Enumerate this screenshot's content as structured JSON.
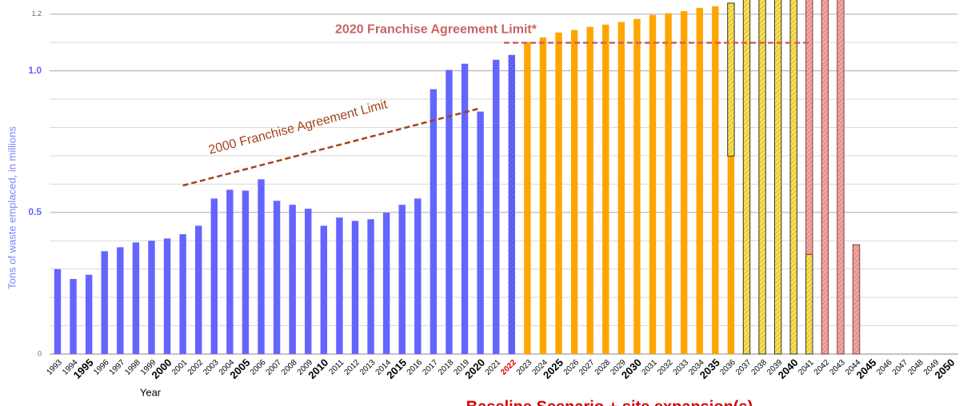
{
  "chart_data": {
    "type": "bar",
    "y_axis_label": "Tons of waste emplaced, in millions",
    "x_axis_label": "Year",
    "footer": "Baseline Scenario + site expansion(s)",
    "categories": [
      "1993",
      "1994",
      "1995",
      "1996",
      "1997",
      "1998",
      "1999",
      "2000",
      "2001",
      "2002",
      "2003",
      "2004",
      "2005",
      "2006",
      "2007",
      "2008",
      "2009",
      "2010",
      "2011",
      "2012",
      "2013",
      "2014",
      "2015",
      "2016",
      "2017",
      "2018",
      "2019",
      "2020",
      "2021",
      "2022",
      "2023",
      "2024",
      "2025",
      "2026",
      "2027",
      "2028",
      "2029",
      "2030",
      "2031",
      "2032",
      "2033",
      "2034",
      "2035",
      "2036",
      "2037",
      "2038",
      "2039",
      "2040",
      "2041",
      "2042",
      "2043",
      "2044",
      "2045",
      "2046",
      "2047",
      "2048",
      "2049",
      "2050"
    ],
    "highlight_index": 29,
    "highlight_color": "#e00000",
    "series": [
      {
        "color": "#6464ff",
        "hatch": false,
        "stroke": "none",
        "values": [
          0.3,
          0.265,
          0.28,
          0.363,
          0.377,
          0.394,
          0.4,
          0.408,
          0.423,
          0.453,
          0.549,
          0.58,
          0.577,
          0.617,
          0.541,
          0.527,
          0.513,
          0.453,
          0.482,
          0.47,
          0.476,
          0.499,
          0.527,
          0.549,
          0.935,
          1.003,
          1.025,
          0.856,
          1.039,
          null,
          null,
          null,
          null,
          null,
          null,
          null,
          null,
          null,
          null,
          null,
          null,
          null,
          null,
          null,
          null,
          null,
          null,
          null,
          null,
          null,
          null,
          null,
          null,
          null,
          null,
          null,
          null,
          null
        ]
      },
      {
        "color": "#6464ff",
        "hatch": true,
        "stroke": "none",
        "values": [
          null,
          null,
          null,
          null,
          null,
          null,
          null,
          null,
          null,
          null,
          null,
          null,
          null,
          null,
          null,
          null,
          null,
          null,
          null,
          null,
          null,
          null,
          null,
          null,
          null,
          null,
          null,
          null,
          null,
          1.056,
          null,
          null,
          null,
          null,
          null,
          null,
          null,
          null,
          null,
          null,
          null,
          null,
          null,
          null,
          null,
          null,
          null,
          null,
          null,
          null,
          null,
          null,
          null,
          null,
          null,
          null,
          null,
          null
        ]
      },
      {
        "color": "#ffa500",
        "hatch": false,
        "stroke": "none",
        "values": [
          null,
          null,
          null,
          null,
          null,
          null,
          null,
          null,
          null,
          null,
          null,
          null,
          null,
          null,
          null,
          null,
          null,
          null,
          null,
          null,
          null,
          null,
          null,
          null,
          null,
          null,
          null,
          null,
          null,
          null,
          1.101,
          1.118,
          1.135,
          1.144,
          1.155,
          1.163,
          1.172,
          1.183,
          1.197,
          1.203,
          1.211,
          1.222,
          1.228,
          0.699,
          null,
          null,
          null,
          null,
          null,
          null,
          null,
          null,
          null,
          null,
          null,
          null,
          null,
          null
        ]
      },
      {
        "color": "#ffe14d",
        "hatch": true,
        "stroke": "#333333",
        "values": [
          null,
          null,
          null,
          null,
          null,
          null,
          null,
          null,
          null,
          null,
          null,
          null,
          null,
          null,
          null,
          null,
          null,
          null,
          null,
          null,
          null,
          null,
          null,
          null,
          null,
          null,
          null,
          null,
          null,
          null,
          null,
          null,
          null,
          null,
          null,
          null,
          null,
          null,
          null,
          null,
          null,
          null,
          null,
          0.54,
          1.3,
          1.3,
          1.3,
          1.3,
          0.352,
          null,
          null,
          null,
          null,
          null,
          null,
          null,
          null,
          null
        ]
      },
      {
        "color": "#f4a6a0",
        "hatch": true,
        "stroke": "#8b3a3a",
        "values": [
          null,
          null,
          null,
          null,
          null,
          null,
          null,
          null,
          null,
          null,
          null,
          null,
          null,
          null,
          null,
          null,
          null,
          null,
          null,
          null,
          null,
          null,
          null,
          null,
          null,
          null,
          null,
          null,
          null,
          null,
          null,
          null,
          null,
          null,
          null,
          null,
          null,
          null,
          null,
          null,
          null,
          null,
          null,
          null,
          null,
          null,
          null,
          null,
          1.0,
          1.3,
          1.3,
          0.386,
          null,
          null,
          null,
          null,
          null,
          null
        ]
      }
    ],
    "ylim": [
      0,
      1.25
    ],
    "yticks": [
      0,
      0.5,
      {
        "value": 1,
        "label": "1.0"
      },
      1.2
    ],
    "minor_yticks": [
      0.1,
      0.2,
      0.3,
      0.4,
      0.6,
      0.7,
      0.8,
      0.9,
      1.1
    ],
    "grid": true,
    "annotations": [
      {
        "text": "2000 Franchise Agreement Limit",
        "color": "#a0451a",
        "x1": 2001,
        "y1": 0.595,
        "x2": 2020,
        "y2": 0.868
      },
      {
        "text": "2020 Franchise Agreement Limit*",
        "color": "#c86464",
        "x1": 2021.5,
        "y1": 1.099,
        "x2": 2041,
        "y2": 1.099
      }
    ]
  }
}
